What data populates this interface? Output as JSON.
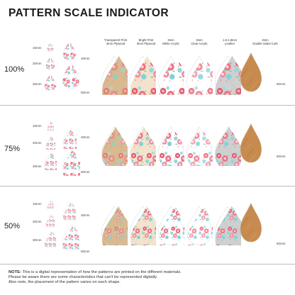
{
  "title": "PATTERN SCALE INDICATOR",
  "columns": [
    {
      "line1": "Transparent Print",
      "line2": "3mm Plywood"
    },
    {
      "line1": "Bright Print",
      "line2": "3mm Plywood"
    },
    {
      "line1": "3mm",
      "line2": "White Acrylic"
    },
    {
      "line1": "3mm",
      "line2": "Clear Acrylic"
    },
    {
      "line1": "1.6-1.8mm",
      "line2": "Leather"
    },
    {
      "line1": "2mm",
      "line2": "Double Sided Cork"
    }
  ],
  "rows": [
    {
      "scale": "100%",
      "s15": "15mm",
      "s20": "20mm",
      "s30": "30mm",
      "s40": "40mm",
      "s50": "50mm",
      "s60": "60mm"
    },
    {
      "scale": "75%",
      "s15": "15mm",
      "s20": "20mm",
      "s30": "30mm",
      "s40": "40mm",
      "s50": "50mm",
      "s60": "60mm"
    },
    {
      "scale": "50%",
      "s15": "15mm",
      "s20": "20mm",
      "s30": "30mm",
      "s40": "40mm",
      "s50": "50mm",
      "s60": "60mm"
    }
  ],
  "note": {
    "label": "NOTE:",
    "text1": " This is a digital representation of how the patterns are printed on the different materials.",
    "text2": "Please be aware there are some characteristics that can't be represented digitally.",
    "text3": "Also note, the placement of the pattern varies on each shape."
  }
}
